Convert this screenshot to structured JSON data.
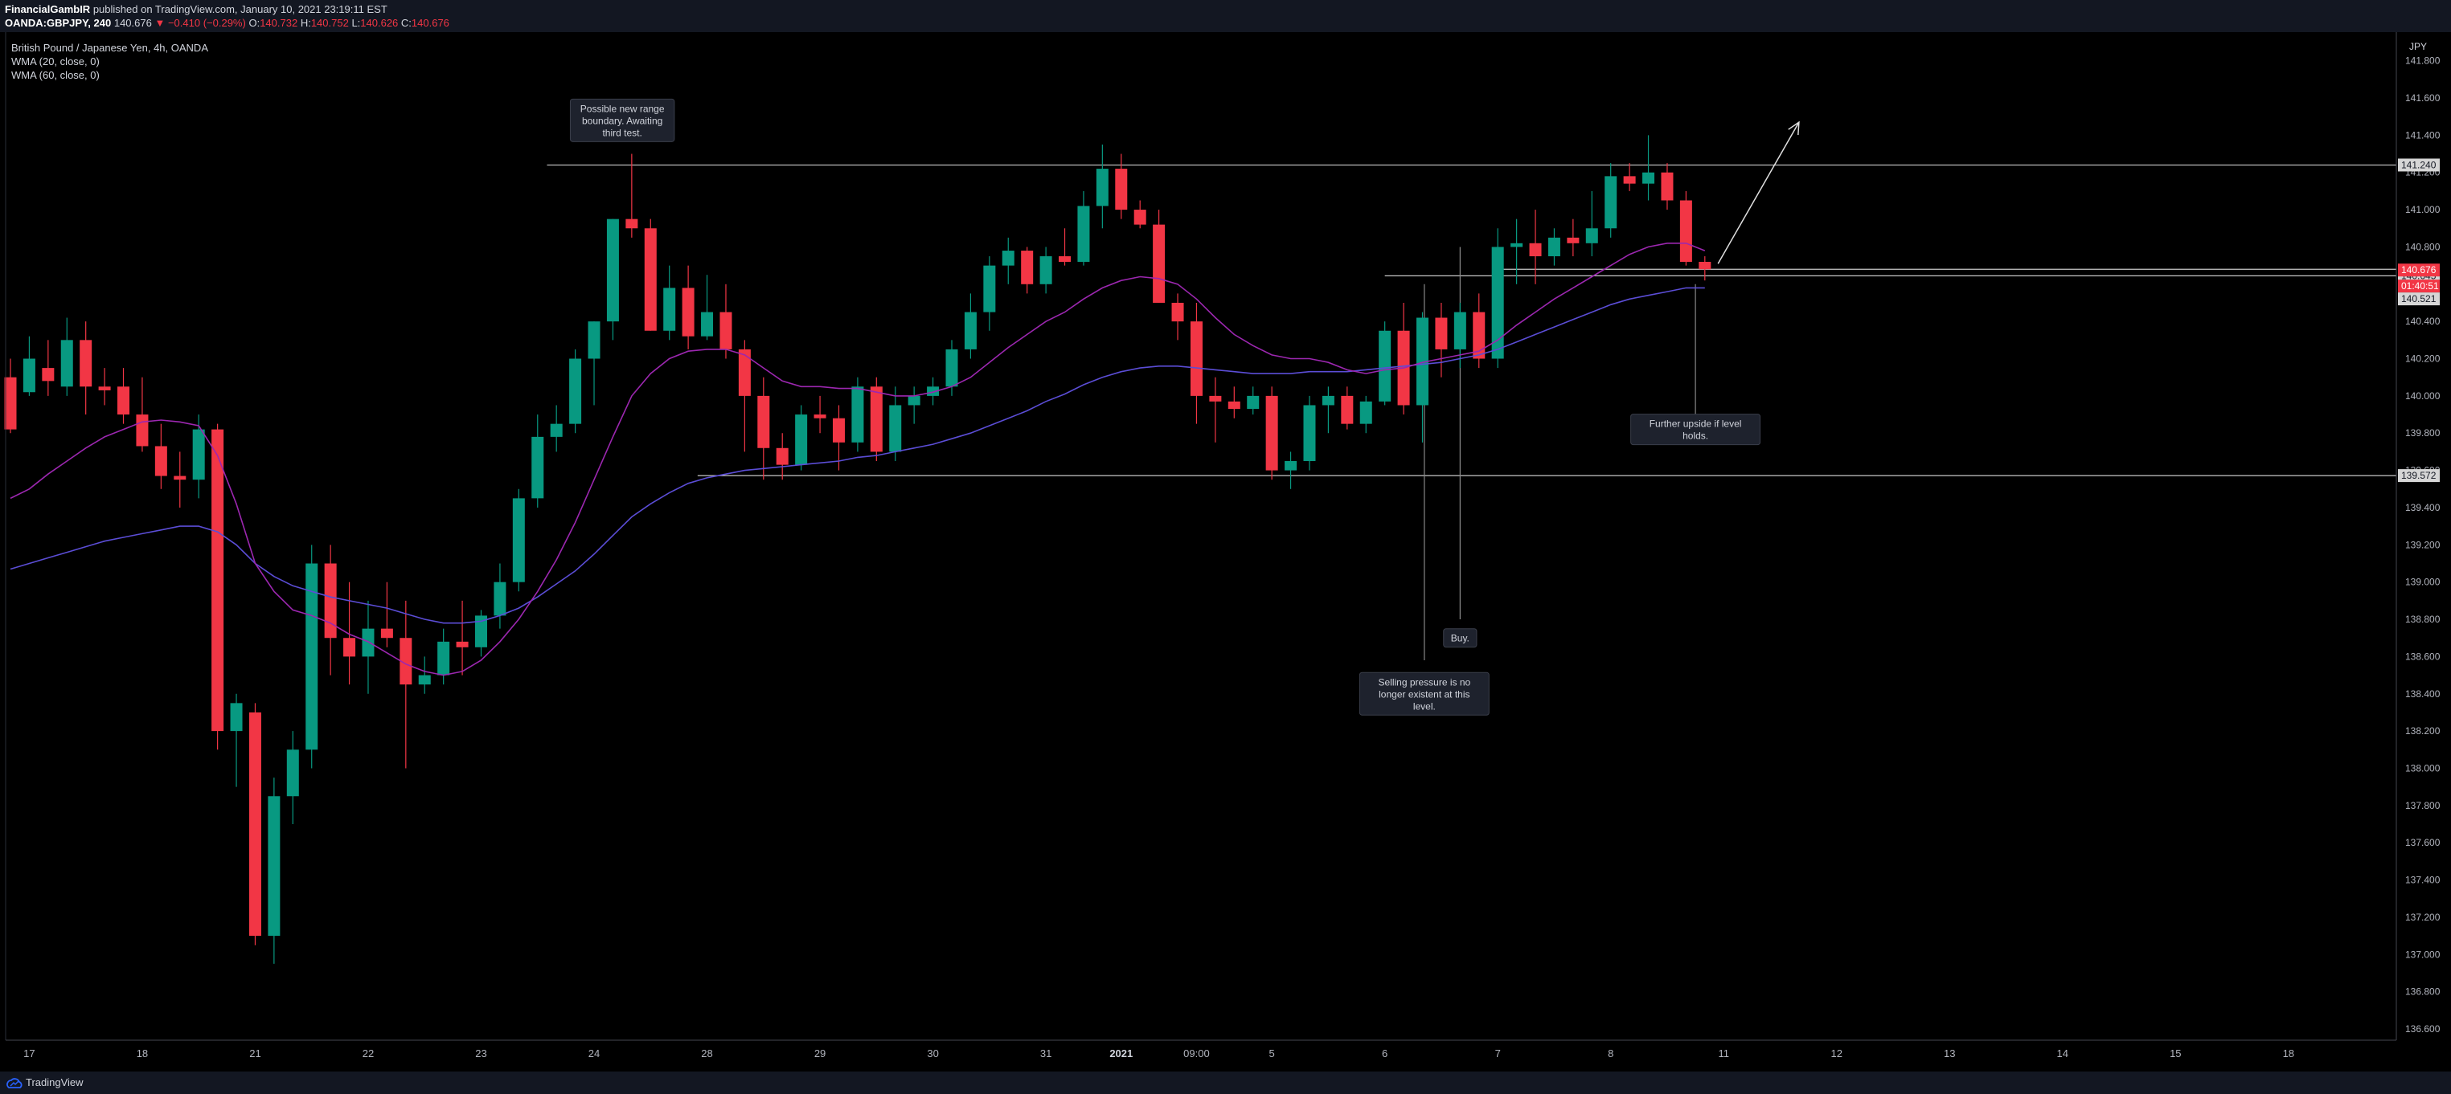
{
  "header": {
    "author": "FinancialGambIR",
    "published": "published on TradingView.com, January 10, 2021 23:19:11 EST",
    "symbol": "OANDA:GBPJPY, 240",
    "last": "140.676",
    "change": "−0.410 (−0.29%)",
    "o_label": "O:",
    "o": "140.732",
    "h_label": "H:",
    "h": "140.752",
    "l_label": "L:",
    "l": "140.626",
    "c_label": "C:",
    "c": "140.676"
  },
  "legend": {
    "title": "British Pound / Japanese Yen, 4h, OANDA",
    "wma20": "WMA (20, close, 0)",
    "wma60": "WMA (60, close, 0)"
  },
  "footer": {
    "brand": "TradingView"
  },
  "colors": {
    "up": "#089981",
    "down": "#f23645",
    "wma20": "#9c27b0",
    "wma60": "#5b4dd6",
    "background": "#000000"
  },
  "chart_data": {
    "type": "candlestick",
    "currency": "JPY",
    "ylim": [
      136.5,
      141.8
    ],
    "y_ticks": [
      "136.600",
      "136.800",
      "137.000",
      "137.200",
      "137.400",
      "137.600",
      "137.800",
      "138.000",
      "138.200",
      "138.400",
      "138.600",
      "138.800",
      "139.000",
      "139.200",
      "139.400",
      "139.600",
      "139.800",
      "140.000",
      "140.200",
      "140.400",
      "140.600",
      "140.800",
      "141.000",
      "141.200",
      "141.400",
      "141.600",
      "141.800"
    ],
    "x_ticks": [
      {
        "i": 1,
        "label": "17"
      },
      {
        "i": 7,
        "label": "18"
      },
      {
        "i": 13,
        "label": "21"
      },
      {
        "i": 19,
        "label": "22"
      },
      {
        "i": 25,
        "label": "23"
      },
      {
        "i": 31,
        "label": "24"
      },
      {
        "i": 37,
        "label": "28"
      },
      {
        "i": 43,
        "label": "29"
      },
      {
        "i": 49,
        "label": "30"
      },
      {
        "i": 55,
        "label": "31"
      },
      {
        "i": 59,
        "label": "2021"
      },
      {
        "i": 63,
        "label": "09:00"
      },
      {
        "i": 67,
        "label": "5"
      },
      {
        "i": 73,
        "label": "6"
      },
      {
        "i": 79,
        "label": "7"
      },
      {
        "i": 85,
        "label": "8"
      },
      {
        "i": 91,
        "label": "11"
      },
      {
        "i": 97,
        "label": "12"
      },
      {
        "i": 103,
        "label": "13"
      },
      {
        "i": 109,
        "label": "14"
      },
      {
        "i": 115,
        "label": "15"
      },
      {
        "i": 121,
        "label": "18"
      }
    ],
    "candles": [
      [
        140.1,
        140.2,
        139.8,
        139.82
      ],
      [
        140.02,
        140.32,
        140.0,
        140.2
      ],
      [
        140.15,
        140.3,
        140.0,
        140.08
      ],
      [
        140.05,
        140.42,
        140.0,
        140.3
      ],
      [
        140.3,
        140.4,
        139.9,
        140.05
      ],
      [
        140.05,
        140.15,
        139.95,
        140.03
      ],
      [
        140.05,
        140.15,
        139.85,
        139.9
      ],
      [
        139.9,
        140.1,
        139.7,
        139.73
      ],
      [
        139.73,
        139.85,
        139.5,
        139.57
      ],
      [
        139.57,
        139.7,
        139.4,
        139.55
      ],
      [
        139.55,
        139.9,
        139.45,
        139.82
      ],
      [
        139.82,
        139.85,
        138.1,
        138.2
      ],
      [
        138.2,
        138.4,
        137.9,
        138.35
      ],
      [
        138.3,
        138.35,
        137.05,
        137.1
      ],
      [
        137.1,
        137.95,
        136.95,
        137.85
      ],
      [
        137.85,
        138.2,
        137.7,
        138.1
      ],
      [
        138.1,
        139.2,
        138.0,
        139.1
      ],
      [
        139.1,
        139.2,
        138.5,
        138.7
      ],
      [
        138.7,
        139.0,
        138.45,
        138.6
      ],
      [
        138.6,
        138.9,
        138.4,
        138.75
      ],
      [
        138.75,
        139.0,
        138.65,
        138.7
      ],
      [
        138.7,
        138.9,
        138.0,
        138.45
      ],
      [
        138.45,
        138.6,
        138.4,
        138.5
      ],
      [
        138.5,
        138.75,
        138.45,
        138.68
      ],
      [
        138.68,
        138.9,
        138.5,
        138.65
      ],
      [
        138.65,
        138.85,
        138.6,
        138.82
      ],
      [
        138.82,
        139.1,
        138.75,
        139.0
      ],
      [
        139.0,
        139.5,
        138.95,
        139.45
      ],
      [
        139.45,
        139.9,
        139.4,
        139.78
      ],
      [
        139.78,
        139.95,
        139.7,
        139.85
      ],
      [
        139.85,
        140.25,
        139.8,
        140.2
      ],
      [
        140.2,
        140.4,
        139.95,
        140.4
      ],
      [
        140.4,
        140.95,
        140.3,
        140.95
      ],
      [
        140.95,
        141.3,
        140.85,
        140.9
      ],
      [
        140.9,
        140.95,
        140.35,
        140.35
      ],
      [
        140.35,
        140.7,
        140.3,
        140.58
      ],
      [
        140.58,
        140.7,
        140.25,
        140.32
      ],
      [
        140.32,
        140.65,
        140.3,
        140.45
      ],
      [
        140.45,
        140.6,
        140.2,
        140.25
      ],
      [
        140.25,
        140.3,
        139.7,
        140.0
      ],
      [
        140.0,
        140.1,
        139.55,
        139.72
      ],
      [
        139.72,
        139.8,
        139.55,
        139.63
      ],
      [
        139.63,
        139.95,
        139.6,
        139.9
      ],
      [
        139.9,
        140.0,
        139.8,
        139.88
      ],
      [
        139.88,
        139.95,
        139.6,
        139.75
      ],
      [
        139.75,
        140.1,
        139.7,
        140.05
      ],
      [
        140.05,
        140.1,
        139.65,
        139.7
      ],
      [
        139.7,
        140.05,
        139.65,
        139.95
      ],
      [
        139.95,
        140.05,
        139.85,
        140.0
      ],
      [
        140.0,
        140.1,
        139.95,
        140.05
      ],
      [
        140.05,
        140.3,
        140.0,
        140.25
      ],
      [
        140.25,
        140.55,
        140.2,
        140.45
      ],
      [
        140.45,
        140.75,
        140.35,
        140.7
      ],
      [
        140.7,
        140.85,
        140.6,
        140.78
      ],
      [
        140.78,
        140.8,
        140.55,
        140.6
      ],
      [
        140.6,
        140.8,
        140.55,
        140.75
      ],
      [
        140.75,
        140.9,
        140.7,
        140.72
      ],
      [
        140.72,
        141.1,
        140.7,
        141.02
      ],
      [
        141.02,
        141.35,
        140.9,
        141.22
      ],
      [
        141.22,
        141.3,
        140.95,
        141.0
      ],
      [
        141.0,
        141.05,
        140.9,
        140.92
      ],
      [
        140.92,
        141.0,
        140.5,
        140.5
      ],
      [
        140.5,
        140.55,
        140.3,
        140.4
      ],
      [
        140.4,
        140.5,
        139.85,
        140.0
      ],
      [
        140.0,
        140.1,
        139.75,
        139.97
      ],
      [
        139.97,
        140.05,
        139.88,
        139.93
      ],
      [
        139.93,
        140.05,
        139.9,
        140.0
      ],
      [
        140.0,
        140.05,
        139.55,
        139.6
      ],
      [
        139.6,
        139.7,
        139.5,
        139.65
      ],
      [
        139.65,
        140.0,
        139.6,
        139.95
      ],
      [
        139.95,
        140.05,
        139.8,
        140.0
      ],
      [
        140.0,
        140.05,
        139.82,
        139.85
      ],
      [
        139.85,
        140.0,
        139.8,
        139.97
      ],
      [
        139.97,
        140.4,
        139.95,
        140.35
      ],
      [
        140.35,
        140.5,
        139.9,
        139.95
      ],
      [
        139.95,
        140.45,
        139.75,
        140.42
      ],
      [
        140.42,
        140.5,
        140.1,
        140.25
      ],
      [
        140.25,
        140.5,
        140.15,
        140.45
      ],
      [
        140.45,
        140.55,
        140.15,
        140.2
      ],
      [
        140.2,
        140.9,
        140.15,
        140.8
      ],
      [
        140.8,
        140.95,
        140.6,
        140.82
      ],
      [
        140.82,
        141.0,
        140.6,
        140.75
      ],
      [
        140.75,
        140.9,
        140.7,
        140.85
      ],
      [
        140.85,
        140.95,
        140.75,
        140.82
      ],
      [
        140.82,
        141.1,
        140.75,
        140.9
      ],
      [
        140.9,
        141.25,
        140.85,
        141.18
      ],
      [
        141.18,
        141.25,
        141.1,
        141.14
      ],
      [
        141.14,
        141.4,
        141.05,
        141.2
      ],
      [
        141.2,
        141.25,
        141.0,
        141.05
      ],
      [
        141.05,
        141.1,
        140.7,
        140.72
      ],
      [
        140.72,
        140.75,
        140.62,
        140.68
      ]
    ],
    "wma20": [
      139.45,
      139.5,
      139.58,
      139.65,
      139.72,
      139.78,
      139.82,
      139.86,
      139.87,
      139.86,
      139.84,
      139.68,
      139.42,
      139.1,
      138.95,
      138.85,
      138.82,
      138.78,
      138.72,
      138.68,
      138.62,
      138.56,
      138.52,
      138.5,
      138.52,
      138.58,
      138.68,
      138.8,
      138.95,
      139.12,
      139.32,
      139.55,
      139.78,
      140.0,
      140.12,
      140.2,
      140.24,
      140.25,
      140.25,
      140.22,
      140.15,
      140.08,
      140.05,
      140.05,
      140.04,
      140.04,
      140.02,
      140.0,
      140.0,
      140.02,
      140.05,
      140.1,
      140.18,
      140.26,
      140.33,
      140.4,
      140.45,
      140.52,
      140.58,
      140.62,
      140.64,
      140.63,
      140.6,
      140.52,
      140.42,
      140.33,
      140.27,
      140.22,
      140.2,
      140.2,
      140.18,
      140.14,
      140.12,
      140.14,
      140.15,
      140.18,
      140.2,
      140.22,
      140.24,
      140.3,
      140.38,
      140.45,
      140.52,
      140.58,
      140.64,
      140.7,
      140.76,
      140.8,
      140.82,
      140.82,
      140.78
    ],
    "wma60": [
      139.07,
      139.1,
      139.13,
      139.16,
      139.19,
      139.22,
      139.24,
      139.26,
      139.28,
      139.3,
      139.3,
      139.27,
      139.2,
      139.1,
      139.03,
      138.98,
      138.95,
      138.92,
      138.9,
      138.88,
      138.86,
      138.83,
      138.8,
      138.78,
      138.78,
      138.79,
      138.82,
      138.86,
      138.92,
      138.99,
      139.06,
      139.15,
      139.25,
      139.35,
      139.42,
      139.48,
      139.53,
      139.56,
      139.58,
      139.6,
      139.61,
      139.62,
      139.63,
      139.64,
      139.65,
      139.67,
      139.68,
      139.7,
      139.72,
      139.74,
      139.77,
      139.8,
      139.84,
      139.88,
      139.92,
      139.97,
      140.01,
      140.06,
      140.1,
      140.13,
      140.15,
      140.16,
      140.16,
      140.15,
      140.14,
      140.13,
      140.12,
      140.12,
      140.12,
      140.13,
      140.13,
      140.13,
      140.14,
      140.15,
      140.16,
      140.17,
      140.18,
      140.2,
      140.22,
      140.25,
      140.29,
      140.33,
      140.37,
      140.41,
      140.45,
      140.49,
      140.52,
      140.54,
      140.56,
      140.58,
      140.58
    ],
    "horizontal_levels": [
      {
        "value": 141.24,
        "start_i": 28.5,
        "label": "141.240"
      },
      {
        "value": 140.645,
        "start_i": 73.0,
        "label": "140.645"
      },
      {
        "value": 140.68,
        "start_i": 79.0,
        "label": ""
      },
      {
        "value": 139.572,
        "start_i": 36.5,
        "label": "139.572"
      }
    ],
    "price_tags": [
      {
        "value": 140.676,
        "label": "140.676",
        "kind": "last"
      },
      {
        "value": 140.59,
        "label": "01:40:51",
        "kind": "countdown"
      },
      {
        "value": 140.521,
        "label": "140.521",
        "kind": "wma"
      }
    ],
    "vertical_lines": [
      {
        "i": 75.1,
        "from": 140.6,
        "to": 138.58
      },
      {
        "i": 77.0,
        "from": 140.8,
        "to": 138.8
      },
      {
        "i": 89.5,
        "from": 140.6,
        "to": 139.9
      }
    ],
    "arrow": {
      "from": [
        90.7,
        140.71
      ],
      "to": [
        95.0,
        141.47
      ]
    },
    "annotations": [
      {
        "i": 32.5,
        "value": 141.48,
        "text": [
          "Possible new range",
          "boundary. Awaiting",
          "third test."
        ]
      },
      {
        "i": 77.0,
        "value": 138.7,
        "text": [
          "Buy."
        ]
      },
      {
        "i": 75.1,
        "value": 138.4,
        "text": [
          "Selling pressure is no",
          "longer existent at this",
          "level."
        ]
      },
      {
        "i": 89.5,
        "value": 139.82,
        "text": [
          "Further upside if level",
          "holds."
        ]
      }
    ]
  }
}
